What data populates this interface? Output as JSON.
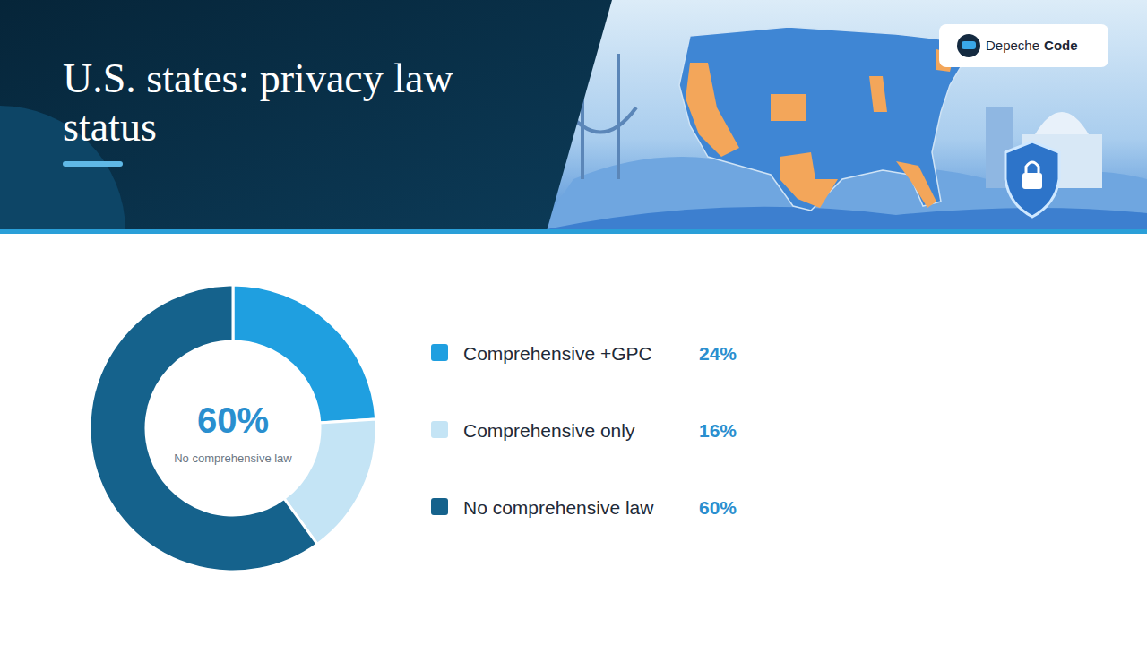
{
  "brand": [
    "Depeche",
    "Code"
  ],
  "chart_data": {
    "type": "pie",
    "title": "U.S. states: privacy law status",
    "categories": [
      "Comprehensive +GPC",
      "Comprehensive only",
      "No comprehensive law"
    ],
    "values": [
      24,
      16,
      60
    ],
    "value_labels": [
      "24%",
      "16%",
      "60%"
    ],
    "colors": [
      "#1f9fe0",
      "#c4e4f5",
      "#15628c"
    ],
    "annotations": [
      "60%",
      "No comprehensive law"
    ],
    "legend": "right",
    "data_labels": false
  }
}
